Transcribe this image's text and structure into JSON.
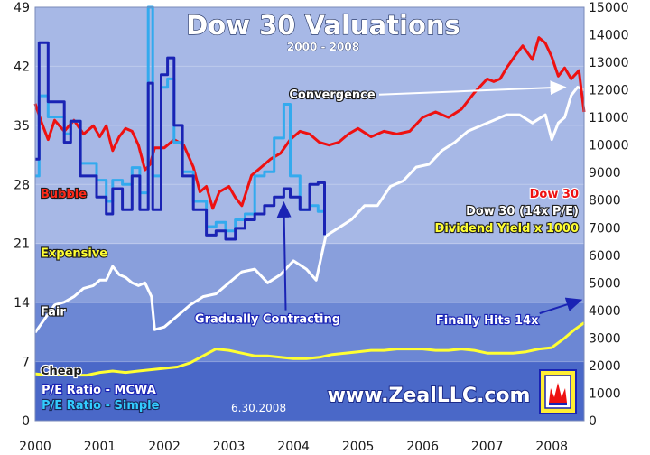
{
  "chart_data": {
    "type": "line",
    "title": "Dow 30 Valuations",
    "subtitle": "2000 - 2008",
    "as_of": "6.30.2008",
    "watermark": "www.ZealLLC.com",
    "x_ticks": [
      "2000",
      "2001",
      "2002",
      "2003",
      "2004",
      "2005",
      "2006",
      "2007",
      "2008"
    ],
    "x_range": [
      2000.0,
      2008.5
    ],
    "y_left": {
      "range": [
        0,
        49
      ],
      "ticks": [
        "0",
        "7",
        "14",
        "21",
        "28",
        "35",
        "42",
        "49"
      ]
    },
    "y_right": {
      "range": [
        0,
        15000
      ],
      "ticks": [
        "0",
        "1000",
        "2000",
        "3000",
        "4000",
        "5000",
        "6000",
        "7000",
        "8000",
        "9000",
        "10000",
        "11000",
        "12000",
        "13000",
        "14000",
        "15000"
      ]
    },
    "zones": [
      {
        "name": "Cheap",
        "from": 0,
        "to": 7,
        "color": "#4a68c8"
      },
      {
        "name": "Fair",
        "from": 7,
        "to": 14,
        "color": "#6c87d4"
      },
      {
        "name": "Expensive",
        "from": 14,
        "to": 21,
        "color": "#899fdc"
      },
      {
        "name": "Bubble",
        "from": 21,
        "to": 49,
        "color": "#a7b8e6"
      }
    ],
    "zone_labels": [
      {
        "text": "Bubble",
        "y": 27.3,
        "color": "#ff2a1a"
      },
      {
        "text": "Expensive",
        "y": 20.3,
        "color": "#ffff33"
      },
      {
        "text": "Fair",
        "y": 13.3,
        "color": "#ffffff"
      },
      {
        "text": "Cheap",
        "y": 6.3,
        "color": "#1a1a1a"
      }
    ],
    "series": [
      {
        "name": "P/E Ratio - MCWA",
        "axis": "left",
        "color": "#1a23b4",
        "x": [
          2000.0,
          2000.06,
          2000.06,
          2000.2,
          2000.2,
          2000.45,
          2000.45,
          2000.55,
          2000.55,
          2000.7,
          2000.7,
          2000.95,
          2000.95,
          2001.1,
          2001.1,
          2001.2,
          2001.2,
          2001.35,
          2001.35,
          2001.5,
          2001.5,
          2001.62,
          2001.62,
          2001.75,
          2001.75,
          2001.82,
          2001.82,
          2001.95,
          2001.95,
          2002.05,
          2002.05,
          2002.15,
          2002.15,
          2002.28,
          2002.28,
          2002.45,
          2002.45,
          2002.65,
          2002.65,
          2002.8,
          2002.8,
          2002.95,
          2002.95,
          2003.1,
          2003.1,
          2003.25,
          2003.25,
          2003.4,
          2003.4,
          2003.55,
          2003.55,
          2003.7,
          2003.7,
          2003.85,
          2003.85,
          2003.95,
          2003.95,
          2004.1,
          2004.1,
          2004.25,
          2004.25,
          2004.38,
          2004.38,
          2004.48,
          2004.48
        ],
        "values": [
          31,
          31,
          44.8,
          44.8,
          37.8,
          37.8,
          33,
          33,
          35.5,
          35.5,
          29,
          29,
          26.5,
          26.5,
          24.5,
          24.5,
          27.5,
          27.5,
          25,
          25,
          29,
          29,
          25,
          25,
          40,
          40,
          25,
          25,
          41,
          41,
          43,
          43,
          35,
          35,
          29,
          29,
          25,
          25,
          22,
          22,
          22.5,
          22.5,
          21.5,
          21.5,
          22.8,
          22.8,
          23.8,
          23.8,
          24.5,
          24.5,
          25.5,
          25.5,
          26.5,
          26.5,
          27.5,
          27.5,
          26.5,
          26.5,
          25,
          25,
          28,
          28,
          28.2,
          28.2,
          22
        ]
      },
      {
        "name": "P/E Ratio - Simple",
        "axis": "left",
        "color": "#33aaee",
        "x": [
          2000.0,
          2000.06,
          2000.06,
          2000.2,
          2000.2,
          2000.45,
          2000.45,
          2000.55,
          2000.55,
          2000.7,
          2000.7,
          2000.95,
          2000.95,
          2001.1,
          2001.1,
          2001.2,
          2001.2,
          2001.35,
          2001.35,
          2001.5,
          2001.5,
          2001.62,
          2001.62,
          2001.75,
          2001.75,
          2001.82,
          2001.82,
          2001.95,
          2001.95,
          2002.05,
          2002.05,
          2002.15,
          2002.15,
          2002.28,
          2002.28,
          2002.45,
          2002.45,
          2002.65,
          2002.65,
          2002.8,
          2002.8,
          2002.95,
          2002.95,
          2003.1,
          2003.1,
          2003.25,
          2003.25,
          2003.4,
          2003.4,
          2003.55,
          2003.55,
          2003.7,
          2003.7,
          2003.85,
          2003.85,
          2003.95,
          2003.95,
          2004.1,
          2004.1,
          2004.25,
          2004.25,
          2004.38,
          2004.38,
          2004.48,
          2004.48
        ],
        "values": [
          29,
          29,
          38.5,
          38.5,
          36,
          36,
          34,
          34,
          35.5,
          35.5,
          30.5,
          30.5,
          28.5,
          28.5,
          26,
          26,
          28.5,
          28.5,
          28,
          28,
          30,
          30,
          27,
          27,
          49,
          49,
          29,
          29,
          39.5,
          39.5,
          40.5,
          40.5,
          33,
          33,
          29.5,
          29.5,
          26,
          26,
          23,
          23,
          23.5,
          23.5,
          22.5,
          22.5,
          23.8,
          23.8,
          24.5,
          24.5,
          29,
          29,
          29.5,
          29.5,
          33.5,
          33.5,
          37.5,
          37.5,
          29,
          29,
          25,
          25,
          25.5,
          25.5,
          24.8,
          24.8,
          22
        ]
      },
      {
        "name": "Dow 30",
        "axis": "right",
        "color": "#ee1111",
        "x": [
          2000.0,
          2000.1,
          2000.2,
          2000.3,
          2000.45,
          2000.6,
          2000.75,
          2000.9,
          2001.0,
          2001.1,
          2001.2,
          2001.3,
          2001.4,
          2001.5,
          2001.6,
          2001.7,
          2001.78,
          2001.85,
          2002.0,
          2002.15,
          2002.3,
          2002.45,
          2002.55,
          2002.65,
          2002.75,
          2002.85,
          2003.0,
          2003.1,
          2003.2,
          2003.35,
          2003.5,
          2003.65,
          2003.8,
          2003.95,
          2004.1,
          2004.25,
          2004.4,
          2004.55,
          2004.7,
          2004.85,
          2005.0,
          2005.2,
          2005.4,
          2005.6,
          2005.8,
          2006.0,
          2006.2,
          2006.4,
          2006.6,
          2006.8,
          2007.0,
          2007.1,
          2007.2,
          2007.3,
          2007.45,
          2007.55,
          2007.7,
          2007.8,
          2007.9,
          2008.0,
          2008.1,
          2008.2,
          2008.3,
          2008.42,
          2008.5
        ],
        "values": [
          11500,
          10800,
          10200,
          10900,
          10500,
          10900,
          10400,
          10700,
          10300,
          10700,
          9800,
          10300,
          10600,
          10500,
          10000,
          9100,
          9300,
          9900,
          9900,
          10200,
          10000,
          9200,
          8300,
          8500,
          7700,
          8300,
          8500,
          8100,
          7800,
          8900,
          9200,
          9500,
          9700,
          10200,
          10500,
          10400,
          10100,
          10000,
          10100,
          10400,
          10600,
          10300,
          10500,
          10400,
          10500,
          11000,
          11200,
          11000,
          11300,
          11900,
          12400,
          12300,
          12400,
          12800,
          13300,
          13600,
          13100,
          13900,
          13700,
          13200,
          12500,
          12800,
          12400,
          12700,
          11200
        ]
      },
      {
        "name": "Dow 30 (14x P/E)",
        "axis": "right",
        "color": "#ffffff",
        "x": [
          2000.0,
          2000.15,
          2000.3,
          2000.45,
          2000.6,
          2000.75,
          2000.9,
          2001.0,
          2001.1,
          2001.2,
          2001.3,
          2001.4,
          2001.5,
          2001.6,
          2001.7,
          2001.8,
          2001.85,
          2002.0,
          2002.2,
          2002.4,
          2002.6,
          2002.8,
          2003.0,
          2003.2,
          2003.4,
          2003.6,
          2003.8,
          2004.0,
          2004.2,
          2004.35,
          2004.5,
          2004.7,
          2004.9,
          2005.1,
          2005.3,
          2005.5,
          2005.7,
          2005.9,
          2006.1,
          2006.3,
          2006.5,
          2006.7,
          2006.9,
          2007.1,
          2007.3,
          2007.5,
          2007.7,
          2007.9,
          2008.0,
          2008.1,
          2008.2,
          2008.3,
          2008.4,
          2008.5
        ],
        "values": [
          3200,
          3700,
          4200,
          4300,
          4500,
          4800,
          4900,
          5100,
          5100,
          5600,
          5300,
          5200,
          5000,
          4900,
          5000,
          4500,
          3300,
          3400,
          3800,
          4200,
          4500,
          4600,
          5000,
          5400,
          5500,
          5000,
          5300,
          5800,
          5500,
          5100,
          6700,
          7000,
          7300,
          7800,
          7800,
          8500,
          8700,
          9200,
          9300,
          9800,
          10100,
          10500,
          10700,
          10900,
          11100,
          11100,
          10800,
          11100,
          10200,
          10800,
          11000,
          11800,
          12100,
          12000
        ]
      },
      {
        "name": "Dividend Yield x 1000",
        "axis": "right",
        "color": "#ffff33",
        "x": [
          2000.0,
          2000.2,
          2000.4,
          2000.6,
          2000.8,
          2001.0,
          2001.2,
          2001.4,
          2001.6,
          2001.8,
          2002.0,
          2002.2,
          2002.4,
          2002.6,
          2002.8,
          2003.0,
          2003.2,
          2003.4,
          2003.6,
          2003.8,
          2004.0,
          2004.2,
          2004.4,
          2004.6,
          2004.8,
          2005.0,
          2005.2,
          2005.4,
          2005.6,
          2005.8,
          2006.0,
          2006.2,
          2006.4,
          2006.6,
          2006.8,
          2007.0,
          2007.2,
          2007.4,
          2007.6,
          2007.8,
          2008.0,
          2008.2,
          2008.35,
          2008.5
        ],
        "values": [
          1700,
          1650,
          1700,
          1650,
          1650,
          1750,
          1800,
          1750,
          1800,
          1850,
          1900,
          1950,
          2100,
          2350,
          2600,
          2550,
          2450,
          2350,
          2350,
          2300,
          2250,
          2250,
          2300,
          2400,
          2450,
          2500,
          2550,
          2550,
          2600,
          2600,
          2600,
          2550,
          2550,
          2600,
          2550,
          2450,
          2450,
          2450,
          2500,
          2600,
          2650,
          3000,
          3300,
          3550
        ]
      }
    ],
    "legend": [
      {
        "text": "Dow 30",
        "color": "#ee1111",
        "stroke": "#ffffff"
      },
      {
        "text": "Dow 30 (14x P/E)",
        "color": "#ffffff",
        "stroke": "#222222"
      },
      {
        "text": "Dividend Yield x 1000",
        "color": "#ffff33",
        "stroke": "#222222"
      },
      {
        "text": "P/E Ratio - MCWA",
        "color": "#ffffff",
        "stroke": "#1a23b4"
      },
      {
        "text": "P/E Ratio - Simple",
        "color": "#33ccff",
        "stroke": "#1a2a5a"
      }
    ],
    "annotations": [
      {
        "text": "Convergence",
        "text_x": 2004.6,
        "text_y": 11700,
        "axis": "right",
        "arrow_to_x": 2008.2,
        "arrow_to_y": 12100
      },
      {
        "text": "Gradually Contracting",
        "text_x": 2003.6,
        "text_y": 3550,
        "axis": "right",
        "arrow_to_x": 2003.85,
        "arrow_to_y": 25.8,
        "arrow_axis": "left"
      },
      {
        "text": "Finally Hits 14x",
        "text_x": 2007.0,
        "text_y": 3500,
        "axis": "right",
        "arrow_to_x": 2008.45,
        "arrow_to_y": 14.3,
        "arrow_axis": "left"
      }
    ]
  }
}
